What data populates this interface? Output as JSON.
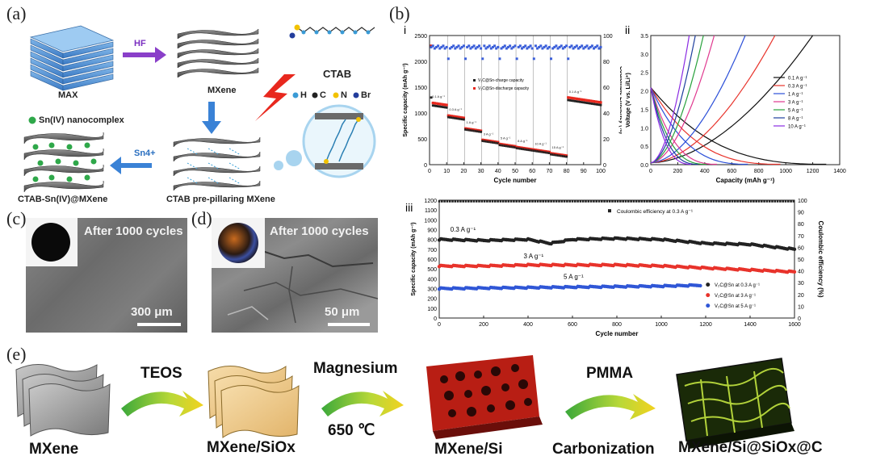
{
  "panels": {
    "a": "(a)",
    "b": "(b)",
    "c": "(c)",
    "d": "(d)",
    "e": "(e)"
  },
  "panel_a": {
    "max": "MAX",
    "hf": "HF",
    "mxene": "MXene",
    "ctab": "CTAB",
    "legend": {
      "h": "H",
      "c": "C",
      "n": "N",
      "br": "Br"
    },
    "sn_complex": "Sn(IV) nanocomplex",
    "sn4": "Sn4+",
    "product": "CTAB-Sn(IV)@MXene",
    "prepillar": "CTAB pre-pillaring MXene"
  },
  "panel_c": {
    "title": "After 1000 cycles",
    "scale": "300 μm"
  },
  "panel_d": {
    "title": "After 1000 cycles",
    "scale": "50 μm"
  },
  "panel_e": {
    "step1": "MXene",
    "arrow1": "TEOS",
    "step2": "MXene/SiOx",
    "arrow2_top": "Magnesium",
    "arrow2_bottom": "650 ℃",
    "step3": "MXene/Si",
    "arrow3_top": "PMMA",
    "arrow3_bottom": "Carbonization",
    "step4": "MXene/Si@SiOx@C"
  },
  "chart_data": [
    {
      "id": "b-i",
      "type": "scatter",
      "panel_label": "i",
      "xlabel": "Cycle number",
      "ylabel": "Specific capacity (mAh g⁻¹)",
      "y2label": "Coulombic Efficiency (%)",
      "xlim": [
        0,
        100
      ],
      "ylim": [
        0,
        2500
      ],
      "y2lim": [
        0,
        100
      ],
      "xticks": [
        0,
        10,
        20,
        30,
        40,
        50,
        60,
        70,
        80,
        90,
        100
      ],
      "yticks": [
        0,
        500,
        1000,
        1500,
        2000,
        2500
      ],
      "y2ticks": [
        0,
        20,
        40,
        60,
        80,
        100
      ],
      "legend": [
        "V₂C@Sn-charge capacity",
        "V₂C@Sn-discharge capacity"
      ],
      "rate_labels": [
        "0.1 A g⁻¹",
        "0.3 A g⁻¹",
        "1 A g⁻¹",
        "3 A g⁻¹",
        "5 A g⁻¹",
        "8 A g⁻¹",
        "10 A g⁻¹",
        "15 A g⁻¹",
        "0.1 A g⁻¹"
      ],
      "segments": [
        {
          "from": 1,
          "to": 10,
          "charge": 1150,
          "discharge": 1200
        },
        {
          "from": 11,
          "to": 20,
          "charge": 920,
          "discharge": 950
        },
        {
          "from": 21,
          "to": 30,
          "charge": 680,
          "discharge": 700
        },
        {
          "from": 31,
          "to": 40,
          "charge": 460,
          "discharge": 480
        },
        {
          "from": 41,
          "to": 50,
          "charge": 380,
          "discharge": 400
        },
        {
          "from": 51,
          "to": 60,
          "charge": 320,
          "discharge": 340
        },
        {
          "from": 61,
          "to": 70,
          "charge": 270,
          "discharge": 290
        },
        {
          "from": 71,
          "to": 80,
          "charge": 200,
          "discharge": 220
        },
        {
          "from": 81,
          "to": 100,
          "charge": 1250,
          "discharge": 1300
        }
      ],
      "first_cycle": {
        "charge": 1300,
        "discharge": 2300
      },
      "coulombic_efficiency": 90
    },
    {
      "id": "b-ii",
      "type": "line",
      "panel_label": "ii",
      "xlabel": "Capacity (mAh g⁻¹)",
      "ylabel": "Voltage (V vs. Li/Li⁺)",
      "xlim": [
        0,
        1400
      ],
      "ylim": [
        0.0,
        3.5
      ],
      "xticks": [
        0,
        200,
        400,
        600,
        800,
        1000,
        1200,
        1400
      ],
      "yticks": [
        0.0,
        0.5,
        1.0,
        1.5,
        2.0,
        2.5,
        3.0,
        3.5
      ],
      "series": [
        {
          "name": "0.1 A g⁻¹",
          "color": "#111111",
          "discharge_cap": 1300,
          "charge_cap": 1200
        },
        {
          "name": "0.3 A g⁻¹",
          "color": "#e8332b",
          "discharge_cap": 960,
          "charge_cap": 920
        },
        {
          "name": "1 A g⁻¹",
          "color": "#2b4fd8",
          "discharge_cap": 720,
          "charge_cap": 700
        },
        {
          "name": "3 A g⁻¹",
          "color": "#e0388f",
          "discharge_cap": 490,
          "charge_cap": 470
        },
        {
          "name": "5 A g⁻¹",
          "color": "#27a13b",
          "discharge_cap": 410,
          "charge_cap": 390
        },
        {
          "name": "8 A g⁻¹",
          "color": "#1e3f9e",
          "discharge_cap": 350,
          "charge_cap": 330
        },
        {
          "name": "10 A g⁻¹",
          "color": "#8a2be2",
          "discharge_cap": 300,
          "charge_cap": 285
        }
      ]
    },
    {
      "id": "b-iii",
      "type": "scatter",
      "panel_label": "iii",
      "xlabel": "Cycle number",
      "ylabel": "Specific capacity (mAh g⁻¹)",
      "y2label": "Coulombic efficiency (%)",
      "xlim": [
        0,
        1600
      ],
      "ylim": [
        0,
        1200
      ],
      "y2lim": [
        0,
        100
      ],
      "xticks": [
        0,
        200,
        400,
        600,
        800,
        1000,
        1200,
        1400,
        1600
      ],
      "yticks": [
        0,
        100,
        200,
        300,
        400,
        500,
        600,
        700,
        800,
        900,
        1000,
        1100,
        1200
      ],
      "y2ticks": [
        0,
        10,
        20,
        30,
        40,
        50,
        60,
        70,
        80,
        90,
        100
      ],
      "annotations": [
        "0.3 A g⁻¹",
        "3 A g⁻¹",
        "5 A g⁻¹"
      ],
      "series": [
        {
          "name": "V₂C@Sn at 0.3 A g⁻¹",
          "color": "#222222",
          "x": [
            0,
            200,
            400,
            500,
            600,
            800,
            1000,
            1200,
            1400,
            1600
          ],
          "y": [
            800,
            790,
            800,
            760,
            800,
            810,
            800,
            760,
            750,
            700
          ]
        },
        {
          "name": "V₂C@Sn at 3 A g⁻¹",
          "color": "#e8332b",
          "x": [
            0,
            200,
            400,
            600,
            800,
            1000,
            1200,
            1400,
            1600
          ],
          "y": [
            530,
            530,
            540,
            540,
            540,
            530,
            510,
            490,
            470
          ]
        },
        {
          "name": "V₂C@Sn at 5 A g⁻¹",
          "color": "#2f56d6",
          "x": [
            0,
            200,
            400,
            600,
            800,
            1000,
            1100,
            1180
          ],
          "y": [
            300,
            305,
            310,
            315,
            320,
            325,
            330,
            335
          ]
        },
        {
          "name": "Coulombic efficiency at 0.3 A g⁻¹",
          "color": "#222222",
          "x": [
            0,
            400,
            800,
            1200,
            1600
          ],
          "y2": [
            99,
            99,
            99,
            99,
            99
          ]
        }
      ]
    }
  ]
}
